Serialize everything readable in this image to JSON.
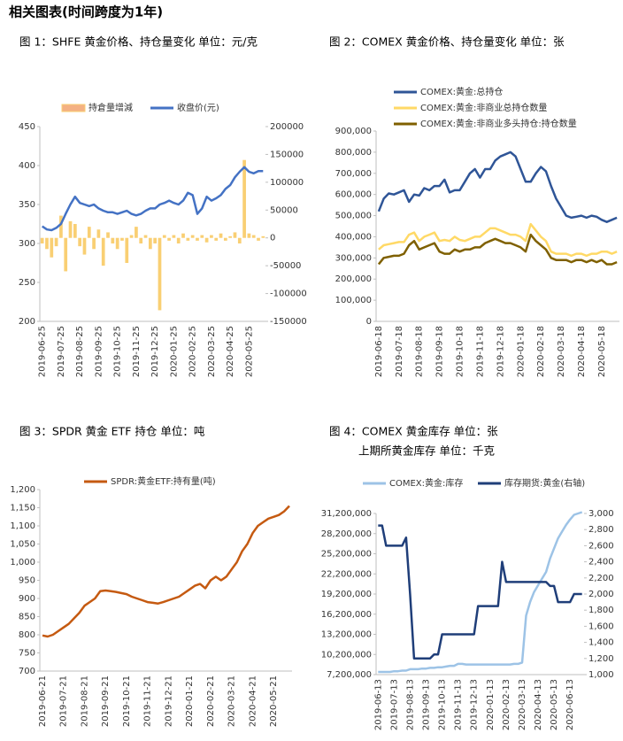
{
  "header": "相关图表(时间跨度为1年)",
  "chart_data": [
    {
      "type": "combo",
      "title": "图 1：SHFE 黄金价格、持仓量变化   单位：元/克",
      "categories": [
        "2019-06-25",
        null,
        null,
        null,
        "2019-07-25",
        null,
        null,
        null,
        "2019-08-25",
        null,
        null,
        null,
        "2019-09-25",
        null,
        null,
        null,
        "2019-10-25",
        null,
        null,
        null,
        "2019-11-25",
        null,
        null,
        null,
        "2019-12-25",
        null,
        null,
        null,
        "2020-01-25",
        null,
        null,
        null,
        "2020-02-25",
        null,
        null,
        null,
        "2020-03-25",
        null,
        null,
        null,
        "2020-04-25",
        null,
        null,
        null,
        "2020-05-25",
        null,
        null,
        null
      ],
      "ylim": [
        200,
        450
      ],
      "yticks": [
        200,
        250,
        300,
        350,
        400,
        450
      ],
      "y2lim": [
        -150000,
        200000
      ],
      "y2ticks": [
        -150000,
        -100000,
        -50000,
        0,
        50000,
        100000,
        150000,
        200000
      ],
      "series": [
        {
          "name": "持倉量增減",
          "type": "bar",
          "axis": "y2",
          "color": "#f9cf73",
          "values": [
            -10000,
            -20000,
            -35000,
            -15000,
            40000,
            -60000,
            30000,
            25000,
            -15000,
            -30000,
            20000,
            -20000,
            15000,
            -50000,
            10000,
            -10000,
            -20000,
            -5000,
            -45000,
            5000,
            20000,
            -10000,
            5000,
            -20000,
            -10000,
            -130000,
            5000,
            -5000,
            5000,
            -10000,
            8000,
            -5000,
            5000,
            -5000,
            5000,
            -8000,
            5000,
            -5000,
            8000,
            -5000,
            3000,
            10000,
            -10000,
            140000,
            8000,
            5000,
            -5000,
            3000
          ]
        },
        {
          "name": "收盘价(元)",
          "type": "line",
          "color": "#4472c4",
          "values": [
            322,
            318,
            317,
            320,
            325,
            338,
            350,
            360,
            352,
            350,
            348,
            350,
            345,
            342,
            340,
            340,
            338,
            340,
            342,
            338,
            336,
            338,
            342,
            345,
            345,
            350,
            352,
            355,
            352,
            350,
            355,
            365,
            362,
            338,
            345,
            360,
            355,
            358,
            362,
            370,
            375,
            385,
            392,
            398,
            392,
            390,
            393,
            393
          ]
        }
      ]
    },
    {
      "type": "line",
      "title": "图 2：COMEX 黄金价格、持仓量变化   单位：张",
      "categories": [
        "2019-06-18",
        null,
        null,
        null,
        "2019-07-18",
        null,
        null,
        null,
        "2019-08-18",
        null,
        null,
        null,
        "2019-09-18",
        null,
        null,
        null,
        "2019-10-18",
        null,
        null,
        null,
        "2019-11-18",
        null,
        null,
        null,
        "2019-12-18",
        null,
        null,
        null,
        "2020-01-18",
        null,
        null,
        null,
        "2020-02-18",
        null,
        null,
        null,
        "2020-03-18",
        null,
        null,
        null,
        "2020-04-18",
        null,
        null,
        null,
        "2020-05-18",
        null,
        null,
        null
      ],
      "ylim": [
        0,
        900000
      ],
      "yticks": [
        0,
        {
          "value": 100000,
          "label": "100,000"
        },
        {
          "value": 200000,
          "label": "200,000"
        },
        {
          "value": 300000,
          "label": "300,000"
        },
        {
          "value": 400000,
          "label": "400,000"
        },
        {
          "value": 500000,
          "label": "500,000"
        },
        {
          "value": 600000,
          "label": "600,000"
        },
        {
          "value": 700000,
          "label": "700,000"
        },
        {
          "value": 800000,
          "label": "800,000"
        },
        {
          "value": 900000,
          "label": "900,000"
        }
      ],
      "series": [
        {
          "name": "COMEX:黄金:总持仓",
          "color": "#2f5597",
          "values": [
            520000,
            580000,
            605000,
            600000,
            610000,
            620000,
            565000,
            600000,
            595000,
            630000,
            620000,
            640000,
            640000,
            670000,
            610000,
            620000,
            620000,
            660000,
            700000,
            720000,
            680000,
            720000,
            720000,
            760000,
            780000,
            790000,
            800000,
            780000,
            720000,
            660000,
            660000,
            700000,
            730000,
            710000,
            640000,
            580000,
            540000,
            500000,
            490000,
            495000,
            500000,
            490000,
            500000,
            495000,
            480000,
            470000,
            480000,
            490000
          ]
        },
        {
          "name": "COMEX:黄金:非商业总持仓数量",
          "color": "#ffd966",
          "values": [
            340000,
            360000,
            365000,
            370000,
            375000,
            375000,
            410000,
            420000,
            380000,
            400000,
            410000,
            420000,
            380000,
            385000,
            380000,
            400000,
            385000,
            380000,
            390000,
            400000,
            400000,
            420000,
            440000,
            440000,
            430000,
            420000,
            410000,
            410000,
            400000,
            380000,
            460000,
            430000,
            400000,
            380000,
            330000,
            320000,
            320000,
            320000,
            310000,
            320000,
            320000,
            310000,
            320000,
            320000,
            330000,
            330000,
            320000,
            330000
          ]
        },
        {
          "name": "COMEX:黄金:非商业多头持仓:持仓数量",
          "color": "#7f6000",
          "values": [
            270000,
            300000,
            305000,
            310000,
            310000,
            320000,
            360000,
            380000,
            340000,
            350000,
            360000,
            370000,
            330000,
            320000,
            320000,
            340000,
            330000,
            340000,
            340000,
            350000,
            350000,
            370000,
            380000,
            390000,
            380000,
            370000,
            370000,
            360000,
            350000,
            330000,
            410000,
            380000,
            360000,
            340000,
            300000,
            290000,
            290000,
            290000,
            280000,
            290000,
            290000,
            280000,
            290000,
            280000,
            290000,
            270000,
            270000,
            280000
          ]
        }
      ]
    },
    {
      "type": "line",
      "title": "图 3：SPDR 黄金 ETF 持仓   单位：吨",
      "categories": [
        "2019-06-21",
        null,
        null,
        null,
        "2019-07-21",
        null,
        null,
        null,
        "2019-08-21",
        null,
        null,
        null,
        "2019-09-21",
        null,
        null,
        null,
        "2019-10-21",
        null,
        null,
        null,
        "2019-11-21",
        null,
        null,
        null,
        "2019-12-21",
        null,
        null,
        null,
        "2020-01-21",
        null,
        null,
        null,
        "2020-02-21",
        null,
        null,
        null,
        "2020-03-21",
        null,
        null,
        null,
        "2020-04-21",
        null,
        null,
        null,
        "2020-05-21",
        null,
        null,
        null
      ],
      "ylim": [
        700,
        1200
      ],
      "yticks": [
        700,
        750,
        800,
        850,
        900,
        950,
        {
          "value": 1000,
          "label": "1,000"
        },
        {
          "value": 1050,
          "label": "1,050"
        },
        {
          "value": 1100,
          "label": "1,100"
        },
        {
          "value": 1150,
          "label": "1,150"
        },
        {
          "value": 1200,
          "label": "1,200"
        }
      ],
      "series": [
        {
          "name": "SPDR:黄金ETF:持有量(吨)",
          "color": "#c55a11",
          "values": [
            798,
            795,
            800,
            810,
            820,
            830,
            845,
            860,
            880,
            890,
            900,
            920,
            922,
            920,
            918,
            915,
            912,
            905,
            900,
            895,
            890,
            888,
            886,
            890,
            895,
            900,
            905,
            915,
            925,
            935,
            940,
            928,
            950,
            960,
            950,
            960,
            980,
            1000,
            1030,
            1050,
            1080,
            1100,
            1110,
            1120,
            1125,
            1130,
            1140,
            1155
          ]
        }
      ]
    },
    {
      "type": "line",
      "title": "图 4：COMEX 黄金库存   单位：张",
      "subtitle": "上期所黄金库存   单位：千克",
      "categories": [
        "2019-06-13",
        null,
        null,
        null,
        "2019-07-13",
        null,
        null,
        null,
        "2019-08-13",
        null,
        null,
        null,
        "2019-09-13",
        null,
        null,
        null,
        "2019-10-13",
        null,
        null,
        null,
        "2019-11-13",
        null,
        null,
        null,
        "2019-12-13",
        null,
        null,
        null,
        "2020-01-13",
        null,
        null,
        null,
        "2020-02-13",
        null,
        null,
        null,
        "2020-03-13",
        null,
        null,
        null,
        "2020-04-13",
        null,
        null,
        null,
        "2020-05-13",
        null,
        null,
        null,
        "2020-06-13",
        null,
        null,
        null
      ],
      "ylim": [
        7200000,
        31200000
      ],
      "yticks": [
        {
          "value": 7200000,
          "label": "7,200,000"
        },
        {
          "value": 10200000,
          "label": "10,200,000"
        },
        {
          "value": 13200000,
          "label": "13,200,000"
        },
        {
          "value": 16200000,
          "label": "16,200,000"
        },
        {
          "value": 19200000,
          "label": "19,200,000"
        },
        {
          "value": 22200000,
          "label": "22,200,000"
        },
        {
          "value": 25200000,
          "label": "25,200,000"
        },
        {
          "value": 28200000,
          "label": "28,200,000"
        },
        {
          "value": 31200000,
          "label": "31,200,000"
        }
      ],
      "y2lim": [
        1000,
        3000
      ],
      "y2ticks": [
        {
          "value": 1000,
          "label": "1,000"
        },
        {
          "value": 1200,
          "label": "1,200"
        },
        {
          "value": 1400,
          "label": "1,400"
        },
        {
          "value": 1600,
          "label": "1,600"
        },
        {
          "value": 1800,
          "label": "1,800"
        },
        {
          "value": 2000,
          "label": "2,000"
        },
        {
          "value": 2200,
          "label": "2,200"
        },
        {
          "value": 2400,
          "label": "2,400"
        },
        {
          "value": 2600,
          "label": "2,600"
        },
        {
          "value": 2800,
          "label": "2,800"
        },
        {
          "value": 3000,
          "label": "3,000"
        }
      ],
      "series": [
        {
          "name": "COMEX:黄金:库存",
          "color": "#9dc3e6",
          "values": [
            7600000,
            7600000,
            7600000,
            7600000,
            7700000,
            7700000,
            7800000,
            7800000,
            8000000,
            8000000,
            8000000,
            8100000,
            8100000,
            8200000,
            8200000,
            8300000,
            8300000,
            8400000,
            8500000,
            8500000,
            8800000,
            8800000,
            8700000,
            8700000,
            8700000,
            8700000,
            8700000,
            8700000,
            8700000,
            8700000,
            8700000,
            8700000,
            8700000,
            8700000,
            8800000,
            8800000,
            9000000,
            16000000,
            18000000,
            19500000,
            20500000,
            21500000,
            22500000,
            24500000,
            26000000,
            27500000,
            28500000,
            29500000,
            30300000,
            31000000,
            31200000,
            31400000
          ]
        },
        {
          "name": "库存期货:黄金(右轴)",
          "axis": "y2",
          "color": "#1f3e79",
          "values": [
            2850,
            2850,
            2600,
            2600,
            2600,
            2600,
            2600,
            2700,
            2000,
            1200,
            1200,
            1200,
            1200,
            1200,
            1250,
            1250,
            1500,
            1500,
            1500,
            1500,
            1500,
            1500,
            1500,
            1500,
            1500,
            1850,
            1850,
            1850,
            1850,
            1850,
            1850,
            2400,
            2150,
            2150,
            2150,
            2150,
            2150,
            2150,
            2150,
            2150,
            2150,
            2150,
            2150,
            2100,
            2100,
            1900,
            1900,
            1900,
            1900,
            2000,
            2000,
            2000
          ]
        }
      ]
    }
  ]
}
